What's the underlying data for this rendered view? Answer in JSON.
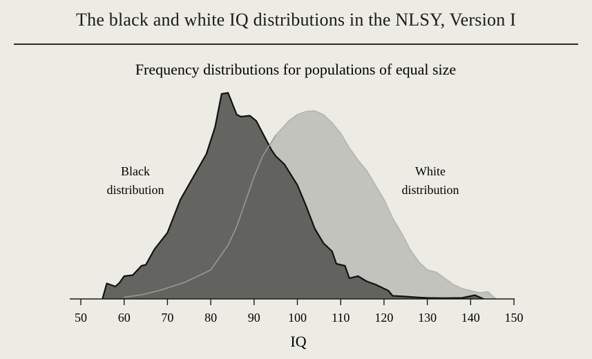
{
  "page": {
    "title": "The black and white IQ distributions in the NLSY, Version I"
  },
  "chart_data": {
    "type": "area",
    "title": "The black and white IQ distributions in the NLSY, Version I",
    "subtitle": "Frequency distributions for populations of equal size",
    "xlabel": "IQ",
    "ylabel": "",
    "xlim": [
      47,
      150
    ],
    "ylim": [
      0,
      100
    ],
    "x_ticks": [
      50,
      60,
      70,
      80,
      90,
      100,
      110,
      120,
      130,
      140,
      150
    ],
    "grid": false,
    "legend": "none",
    "colors": {
      "black_fill": "#5f5f5c",
      "black_stroke": "#111111",
      "white_fill": "#c3c3bd",
      "white_stroke": "#b4b4ae",
      "axis": "#1a1a1a"
    },
    "series": [
      {
        "name": "White distribution",
        "label_lines": [
          "White",
          "distribution"
        ],
        "points": [
          [
            56,
            0
          ],
          [
            60,
            0.8
          ],
          [
            64,
            2
          ],
          [
            68,
            4
          ],
          [
            71,
            6
          ],
          [
            74,
            8
          ],
          [
            77,
            11
          ],
          [
            80,
            14
          ],
          [
            82,
            20
          ],
          [
            84,
            26
          ],
          [
            86,
            35
          ],
          [
            88,
            47
          ],
          [
            90,
            59
          ],
          [
            92,
            69
          ],
          [
            95,
            79
          ],
          [
            98,
            86
          ],
          [
            100,
            89
          ],
          [
            102,
            90.5
          ],
          [
            104,
            90.8
          ],
          [
            106,
            89
          ],
          [
            108,
            85
          ],
          [
            110,
            80
          ],
          [
            112,
            73
          ],
          [
            114,
            67
          ],
          [
            116,
            62
          ],
          [
            118,
            55
          ],
          [
            120,
            48
          ],
          [
            122,
            39
          ],
          [
            124,
            32
          ],
          [
            126,
            24
          ],
          [
            128,
            18
          ],
          [
            130,
            14
          ],
          [
            132,
            13
          ],
          [
            134,
            10
          ],
          [
            136,
            7
          ],
          [
            138,
            5
          ],
          [
            140,
            4
          ],
          [
            142,
            3
          ],
          [
            144,
            3.5
          ],
          [
            145,
            1.5
          ],
          [
            146,
            0
          ]
        ]
      },
      {
        "name": "Black distribution",
        "label_lines": [
          "Black",
          "distribution"
        ],
        "points": [
          [
            55,
            0
          ],
          [
            56,
            7.5
          ],
          [
            58,
            6
          ],
          [
            59,
            8
          ],
          [
            60,
            11
          ],
          [
            62,
            11.5
          ],
          [
            64,
            16
          ],
          [
            65,
            16.5
          ],
          [
            67,
            24
          ],
          [
            70,
            32
          ],
          [
            73,
            48
          ],
          [
            76,
            59
          ],
          [
            79,
            70
          ],
          [
            81,
            83
          ],
          [
            82.5,
            99
          ],
          [
            84,
            99.5
          ],
          [
            86,
            89
          ],
          [
            87,
            88
          ],
          [
            89,
            88.5
          ],
          [
            90.5,
            86
          ],
          [
            92,
            80
          ],
          [
            94,
            72
          ],
          [
            95,
            69
          ],
          [
            97,
            65
          ],
          [
            100,
            55
          ],
          [
            102,
            45
          ],
          [
            104,
            34
          ],
          [
            106,
            27
          ],
          [
            108,
            23
          ],
          [
            109,
            17
          ],
          [
            111,
            16
          ],
          [
            112,
            10
          ],
          [
            114,
            11
          ],
          [
            116,
            8.5
          ],
          [
            118,
            7
          ],
          [
            121,
            4
          ],
          [
            122,
            1.5
          ],
          [
            124,
            1.3
          ],
          [
            126,
            1
          ],
          [
            128,
            0.7
          ],
          [
            130,
            0.5
          ],
          [
            134,
            0.4
          ],
          [
            138,
            0.5
          ],
          [
            141,
            1.8
          ],
          [
            143,
            0
          ]
        ]
      }
    ]
  }
}
